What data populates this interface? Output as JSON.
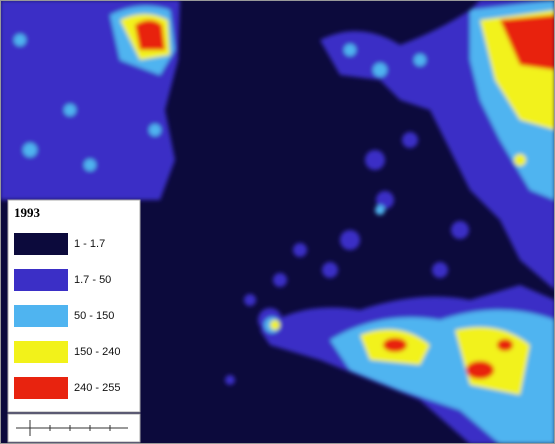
{
  "legend": {
    "title": "1993",
    "items": [
      {
        "label": "1 - 1.7",
        "color": "#0c0a3c"
      },
      {
        "label": "1.7 - 50",
        "color": "#3b2fc6"
      },
      {
        "label": "50 - 150",
        "color": "#4fb4f0"
      },
      {
        "label": "150 - 240",
        "color": "#f2f21a"
      },
      {
        "label": "240 - 255",
        "color": "#e8230f"
      }
    ]
  }
}
